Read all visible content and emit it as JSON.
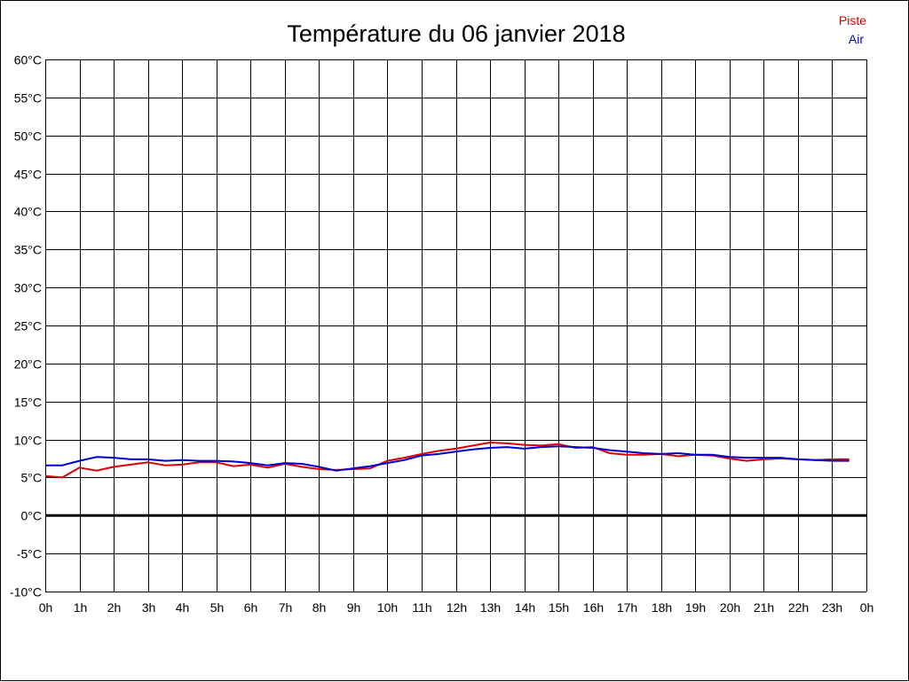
{
  "colors": {
    "piste": "#dd0000",
    "air": "#0000cc",
    "grid": "#000000",
    "zero_line": "#000000"
  },
  "chart_data": {
    "type": "line",
    "title": "Température du 06 janvier 2018",
    "xlabel": "",
    "ylabel": "",
    "x_tick_labels": [
      "0h",
      "1h",
      "2h",
      "3h",
      "4h",
      "5h",
      "6h",
      "7h",
      "8h",
      "9h",
      "10h",
      "11h",
      "12h",
      "13h",
      "14h",
      "15h",
      "16h",
      "17h",
      "18h",
      "19h",
      "20h",
      "21h",
      "22h",
      "23h",
      "0h"
    ],
    "y_tick_labels": [
      "60°C",
      "55°C",
      "50°C",
      "45°C",
      "40°C",
      "35°C",
      "30°C",
      "25°C",
      "20°C",
      "15°C",
      "10°C",
      "5°C",
      "0°C",
      "-5°C",
      "-10°C"
    ],
    "xlim": [
      0,
      24
    ],
    "ylim": [
      -10,
      60
    ],
    "grid": true,
    "legend_position": "top-right",
    "series": [
      {
        "name": "Piste",
        "color": "#dd0000",
        "x": [
          0,
          0.5,
          1,
          1.5,
          2,
          2.5,
          3,
          3.5,
          4,
          4.5,
          5,
          5.5,
          6,
          6.5,
          7,
          7.5,
          8,
          8.5,
          9,
          9.5,
          10,
          10.5,
          11,
          11.5,
          12,
          12.5,
          13,
          13.5,
          14,
          14.5,
          15,
          15.5,
          16,
          16.5,
          17,
          17.5,
          18,
          18.5,
          19,
          19.5,
          20,
          20.5,
          21,
          21.5,
          22,
          22.5,
          23,
          23.5
        ],
        "values": [
          5.2,
          5.0,
          6.3,
          5.9,
          6.4,
          6.7,
          7.0,
          6.6,
          6.7,
          7.0,
          7.0,
          6.5,
          6.7,
          6.3,
          6.8,
          6.4,
          6.1,
          6.0,
          6.1,
          6.2,
          7.2,
          7.6,
          8.1,
          8.5,
          8.8,
          9.2,
          9.6,
          9.5,
          9.3,
          9.2,
          9.4,
          8.9,
          9.0,
          8.2,
          8.0,
          8.0,
          8.1,
          7.8,
          8.0,
          7.9,
          7.5,
          7.2,
          7.4,
          7.5,
          7.4,
          7.3,
          7.4,
          7.4
        ]
      },
      {
        "name": "Air",
        "color": "#0000cc",
        "x": [
          0,
          0.5,
          1,
          1.5,
          2,
          2.5,
          3,
          3.5,
          4,
          4.5,
          5,
          5.5,
          6,
          6.5,
          7,
          7.5,
          8,
          8.5,
          9,
          9.5,
          10,
          10.5,
          11,
          11.5,
          12,
          12.5,
          13,
          13.5,
          14,
          14.5,
          15,
          15.5,
          16,
          16.5,
          17,
          17.5,
          18,
          18.5,
          19,
          19.5,
          20,
          20.5,
          21,
          21.5,
          22,
          22.5,
          23,
          23.5
        ],
        "values": [
          6.6,
          6.6,
          7.2,
          7.7,
          7.6,
          7.4,
          7.4,
          7.2,
          7.3,
          7.2,
          7.2,
          7.1,
          6.9,
          6.6,
          6.9,
          6.8,
          6.4,
          5.9,
          6.2,
          6.5,
          6.9,
          7.3,
          7.9,
          8.1,
          8.4,
          8.7,
          8.9,
          9.0,
          8.8,
          9.0,
          9.1,
          9.0,
          8.9,
          8.6,
          8.4,
          8.2,
          8.1,
          8.2,
          8.0,
          8.0,
          7.7,
          7.6,
          7.6,
          7.6,
          7.4,
          7.3,
          7.2,
          7.2
        ]
      }
    ]
  }
}
